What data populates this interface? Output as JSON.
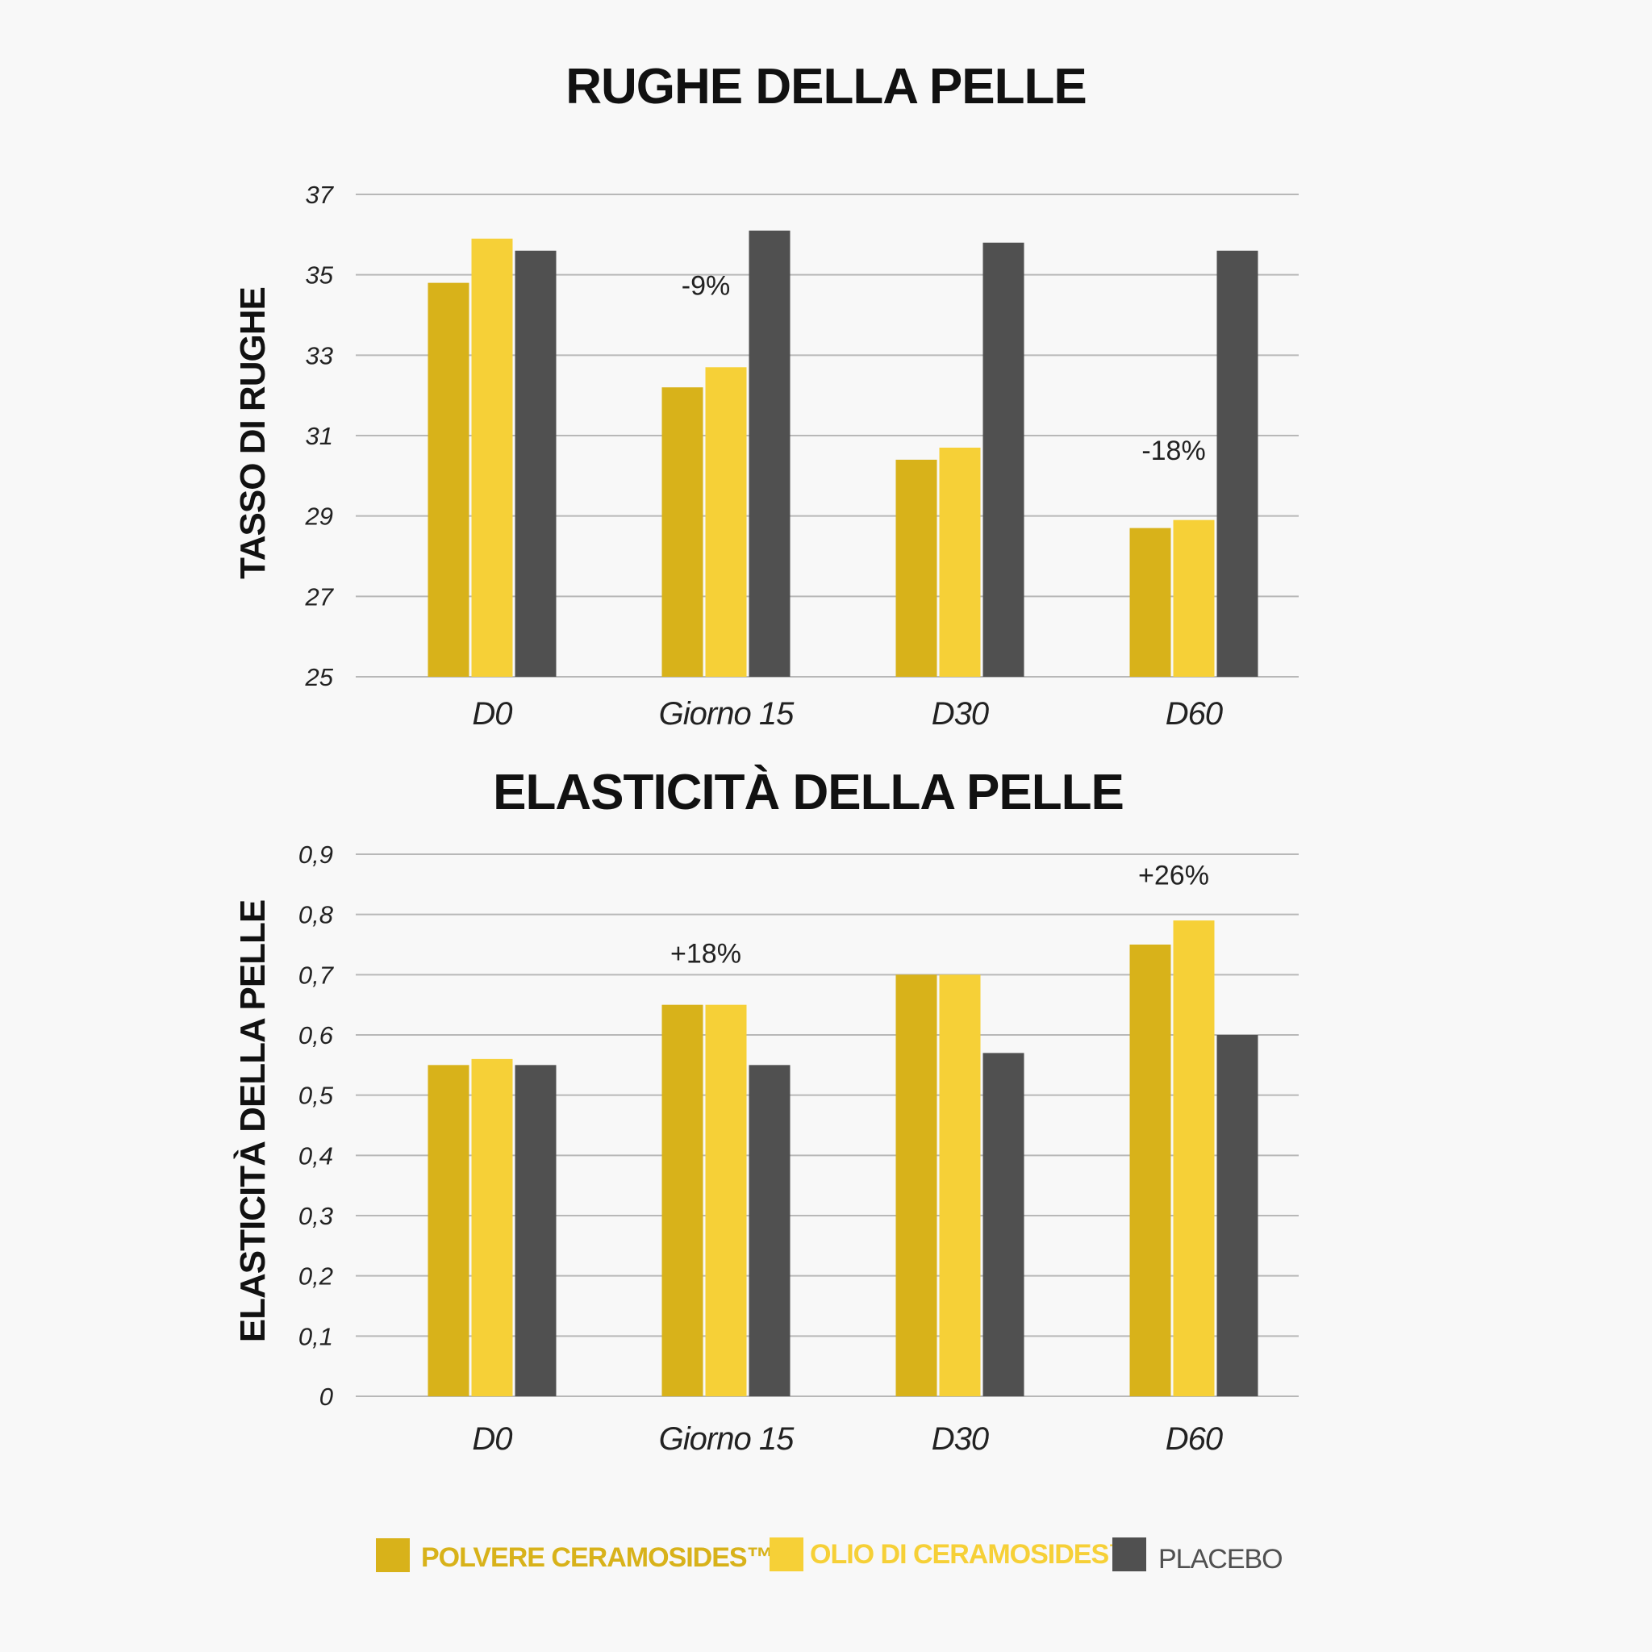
{
  "colors": {
    "background": "#f8f8f8",
    "series": [
      "#d8b21a",
      "#f6d037",
      "#505050"
    ],
    "grid": "#b8b8b8"
  },
  "legend": {
    "placement": "bottom",
    "items": [
      {
        "label": "POLVERE CERAMOSIDES™",
        "color": "#d8b21a"
      },
      {
        "label": "OLIO DI CERAMOSIDES™",
        "color": "#f6d037"
      },
      {
        "label": "PLACEBO",
        "color": "#505050"
      }
    ]
  },
  "chart_data": [
    {
      "type": "bar",
      "title": "RUGHE DELLA PELLE",
      "ylabel": "TASSO DI RUGHE",
      "xlabel": "",
      "categories": [
        "D0",
        "Giorno 15",
        "D30",
        "D60"
      ],
      "ylim": [
        25,
        37
      ],
      "yticks": [
        "25",
        "27",
        "29",
        "31",
        "33",
        "35",
        "37"
      ],
      "grid": true,
      "series": [
        {
          "values": [
            34.8,
            32.2,
            30.4,
            28.7
          ]
        },
        {
          "values": [
            35.9,
            32.7,
            30.7,
            28.9
          ]
        },
        {
          "values": [
            35.6,
            36.1,
            35.8,
            35.6
          ]
        }
      ],
      "annotations": [
        {
          "category": "Giorno 15",
          "text": "-9%",
          "y": 34.5
        },
        {
          "category": "D60",
          "text": "-18%",
          "y": 30.4
        }
      ]
    },
    {
      "type": "bar",
      "title": "ELASTICITÀ DELLA PELLE",
      "ylabel": "ELASTICITÀ DELLA PELLE",
      "xlabel": "",
      "categories": [
        "D0",
        "Giorno 15",
        "D30",
        "D60"
      ],
      "ylim": [
        0,
        0.9
      ],
      "yticks": [
        "0",
        "0,1",
        "0,2",
        "0,3",
        "0,4",
        "0,5",
        "0,6",
        "0,7",
        "0,8",
        "0,9"
      ],
      "grid": true,
      "series": [
        {
          "values": [
            0.55,
            0.65,
            0.7,
            0.75
          ]
        },
        {
          "values": [
            0.56,
            0.65,
            0.7,
            0.79
          ]
        },
        {
          "values": [
            0.55,
            0.55,
            0.57,
            0.6
          ]
        }
      ],
      "annotations": [
        {
          "category": "Giorno 15",
          "text": "+18%",
          "y": 0.72
        },
        {
          "category": "D60",
          "text": "+26%",
          "y": 0.85
        }
      ]
    }
  ]
}
